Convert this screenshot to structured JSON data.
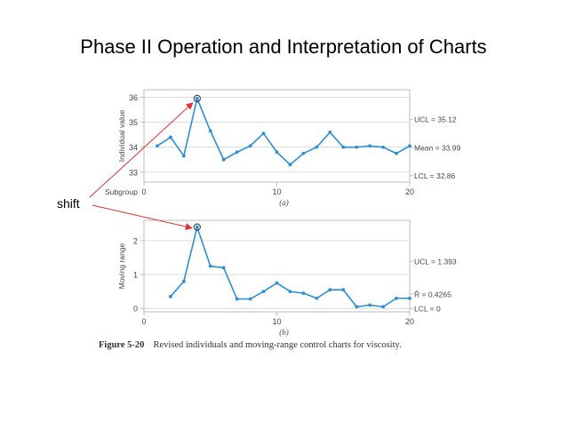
{
  "title": "Phase II Operation and Interpretation of Charts",
  "annotation": "shift",
  "caption": {
    "label": "Figure 5-20",
    "text": "Revised individuals and moving-range control charts for viscosity."
  },
  "colors": {
    "series": "#2b8fd6",
    "frame": "#bdbdbd",
    "arrow": "#e03030",
    "text": "#444444"
  },
  "chart_data": [
    {
      "type": "line",
      "panel_label": "(a)",
      "ylabel": "Individual value",
      "x_prefix_label": "Subgroup",
      "xlim": [
        0,
        20
      ],
      "ylim": [
        32.6,
        36.3
      ],
      "xticks": [
        "0",
        "10",
        "20"
      ],
      "yticks": [
        "33",
        "34",
        "35",
        "36"
      ],
      "ytick_values": [
        33,
        34,
        35,
        36
      ],
      "limit_labels": [
        "UCL = 35.12",
        "Mean = 33.99",
        "LCL = 32.86"
      ],
      "limit_values": [
        35.12,
        33.99,
        32.86
      ],
      "x": [
        1,
        2,
        3,
        4,
        5,
        6,
        7,
        8,
        9,
        10,
        11,
        12,
        13,
        14,
        15,
        16,
        17,
        18,
        19,
        20
      ],
      "y": [
        34.05,
        34.4,
        33.65,
        35.95,
        34.65,
        33.5,
        33.8,
        34.05,
        34.55,
        33.8,
        33.3,
        33.75,
        34.0,
        34.6,
        34.0,
        34.0,
        34.05,
        34.0,
        33.75,
        34.05
      ],
      "highlight_x": 4
    },
    {
      "type": "line",
      "panel_label": "(b)",
      "ylabel": "Moving range",
      "xlim": [
        0,
        20
      ],
      "ylim": [
        -0.1,
        2.6
      ],
      "xticks": [
        "0",
        "10",
        "20"
      ],
      "yticks": [
        "0",
        "1",
        "2"
      ],
      "ytick_values": [
        0,
        1,
        2
      ],
      "limit_labels": [
        "UCL = 1.393",
        "R̄ = 0.4265",
        "LCL = 0"
      ],
      "limit_values": [
        1.393,
        0.4265,
        0
      ],
      "x": [
        2,
        3,
        4,
        5,
        6,
        7,
        8,
        9,
        10,
        11,
        12,
        13,
        14,
        15,
        16,
        17,
        18,
        19,
        20
      ],
      "y": [
        0.35,
        0.8,
        2.4,
        1.25,
        1.2,
        0.28,
        0.28,
        0.5,
        0.75,
        0.5,
        0.45,
        0.3,
        0.55,
        0.55,
        0.05,
        0.1,
        0.05,
        0.3,
        0.3
      ],
      "highlight_x": 4
    }
  ]
}
